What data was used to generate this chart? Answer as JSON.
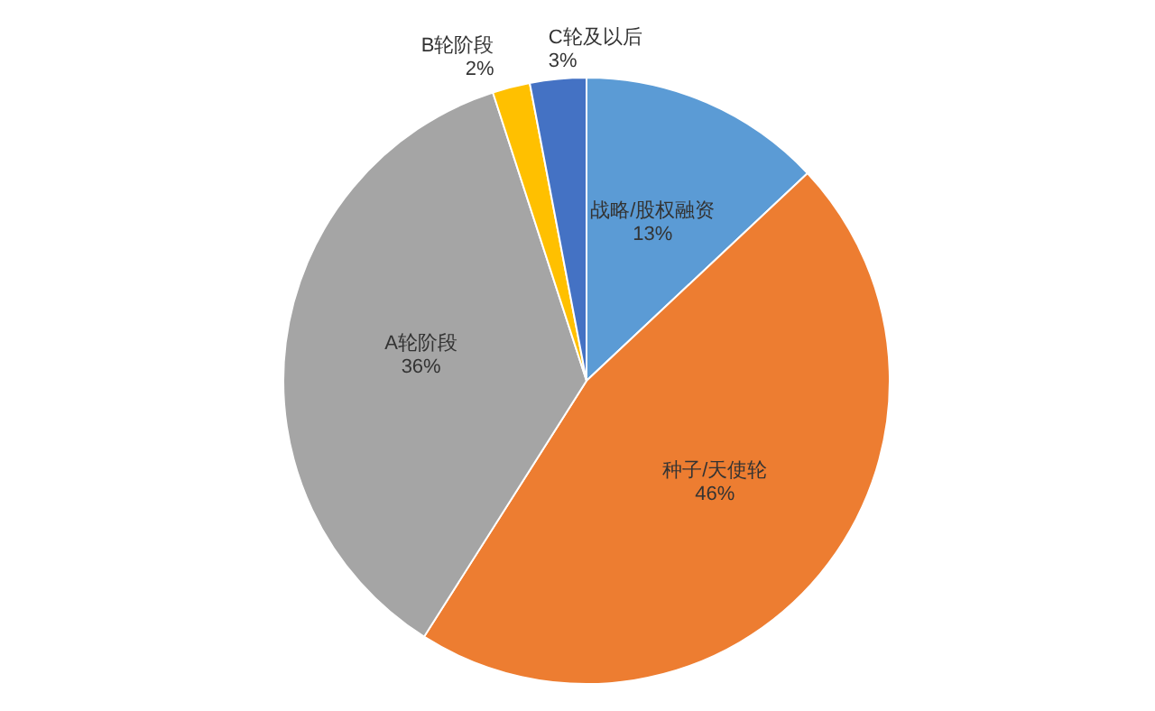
{
  "chart_data": {
    "type": "pie",
    "categories": [
      "战略/股权融资",
      "种子/天使轮",
      "A轮阶段",
      "B轮阶段",
      "C轮及以后"
    ],
    "values": [
      13,
      46,
      36,
      2,
      3
    ],
    "value_labels": [
      "13%",
      "46%",
      "36%",
      "2%",
      "3%"
    ],
    "colors": [
      "#5b9bd5",
      "#ed7d31",
      "#a5a5a5",
      "#ffc000",
      "#4472c4"
    ],
    "legend": false
  }
}
